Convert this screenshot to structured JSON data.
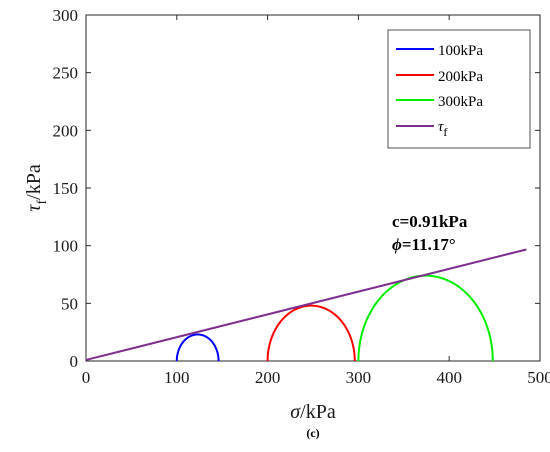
{
  "chart_data": {
    "type": "line",
    "xlabel_symbol": "σ",
    "xlabel_unit": "/kPa",
    "ylabel_symbol": "τ",
    "ylabel_sub": "f",
    "ylabel_unit": "/kPa",
    "xlim": [
      0,
      500
    ],
    "ylim": [
      0,
      300
    ],
    "xticks": [
      "0",
      "100",
      "200",
      "300",
      "400",
      "500"
    ],
    "yticks": [
      "0",
      "50",
      "100",
      "150",
      "200",
      "250",
      "300"
    ],
    "grid": false,
    "legend_position": "top-right",
    "series": [
      {
        "name": "100kPa",
        "kind": "mohr-circle",
        "center": 123,
        "radius": 23,
        "color": "#0000ff"
      },
      {
        "name": "200kPa",
        "kind": "mohr-circle",
        "center": 248,
        "radius": 48,
        "color": "#ff0000"
      },
      {
        "name": "300kPa",
        "kind": "mohr-circle",
        "center": 374,
        "radius": 74,
        "color": "#00ee00"
      },
      {
        "name": "τ",
        "name_sub": "f",
        "kind": "envelope",
        "x": [
          0,
          485
        ],
        "y": [
          0.91,
          96.7
        ],
        "color": "#7e2f8e"
      }
    ],
    "annotations": {
      "cohesion": "c=0.91kPa",
      "phi_symbol": "ϕ",
      "phi_value": "=11.17°"
    },
    "caption": "(c)"
  }
}
